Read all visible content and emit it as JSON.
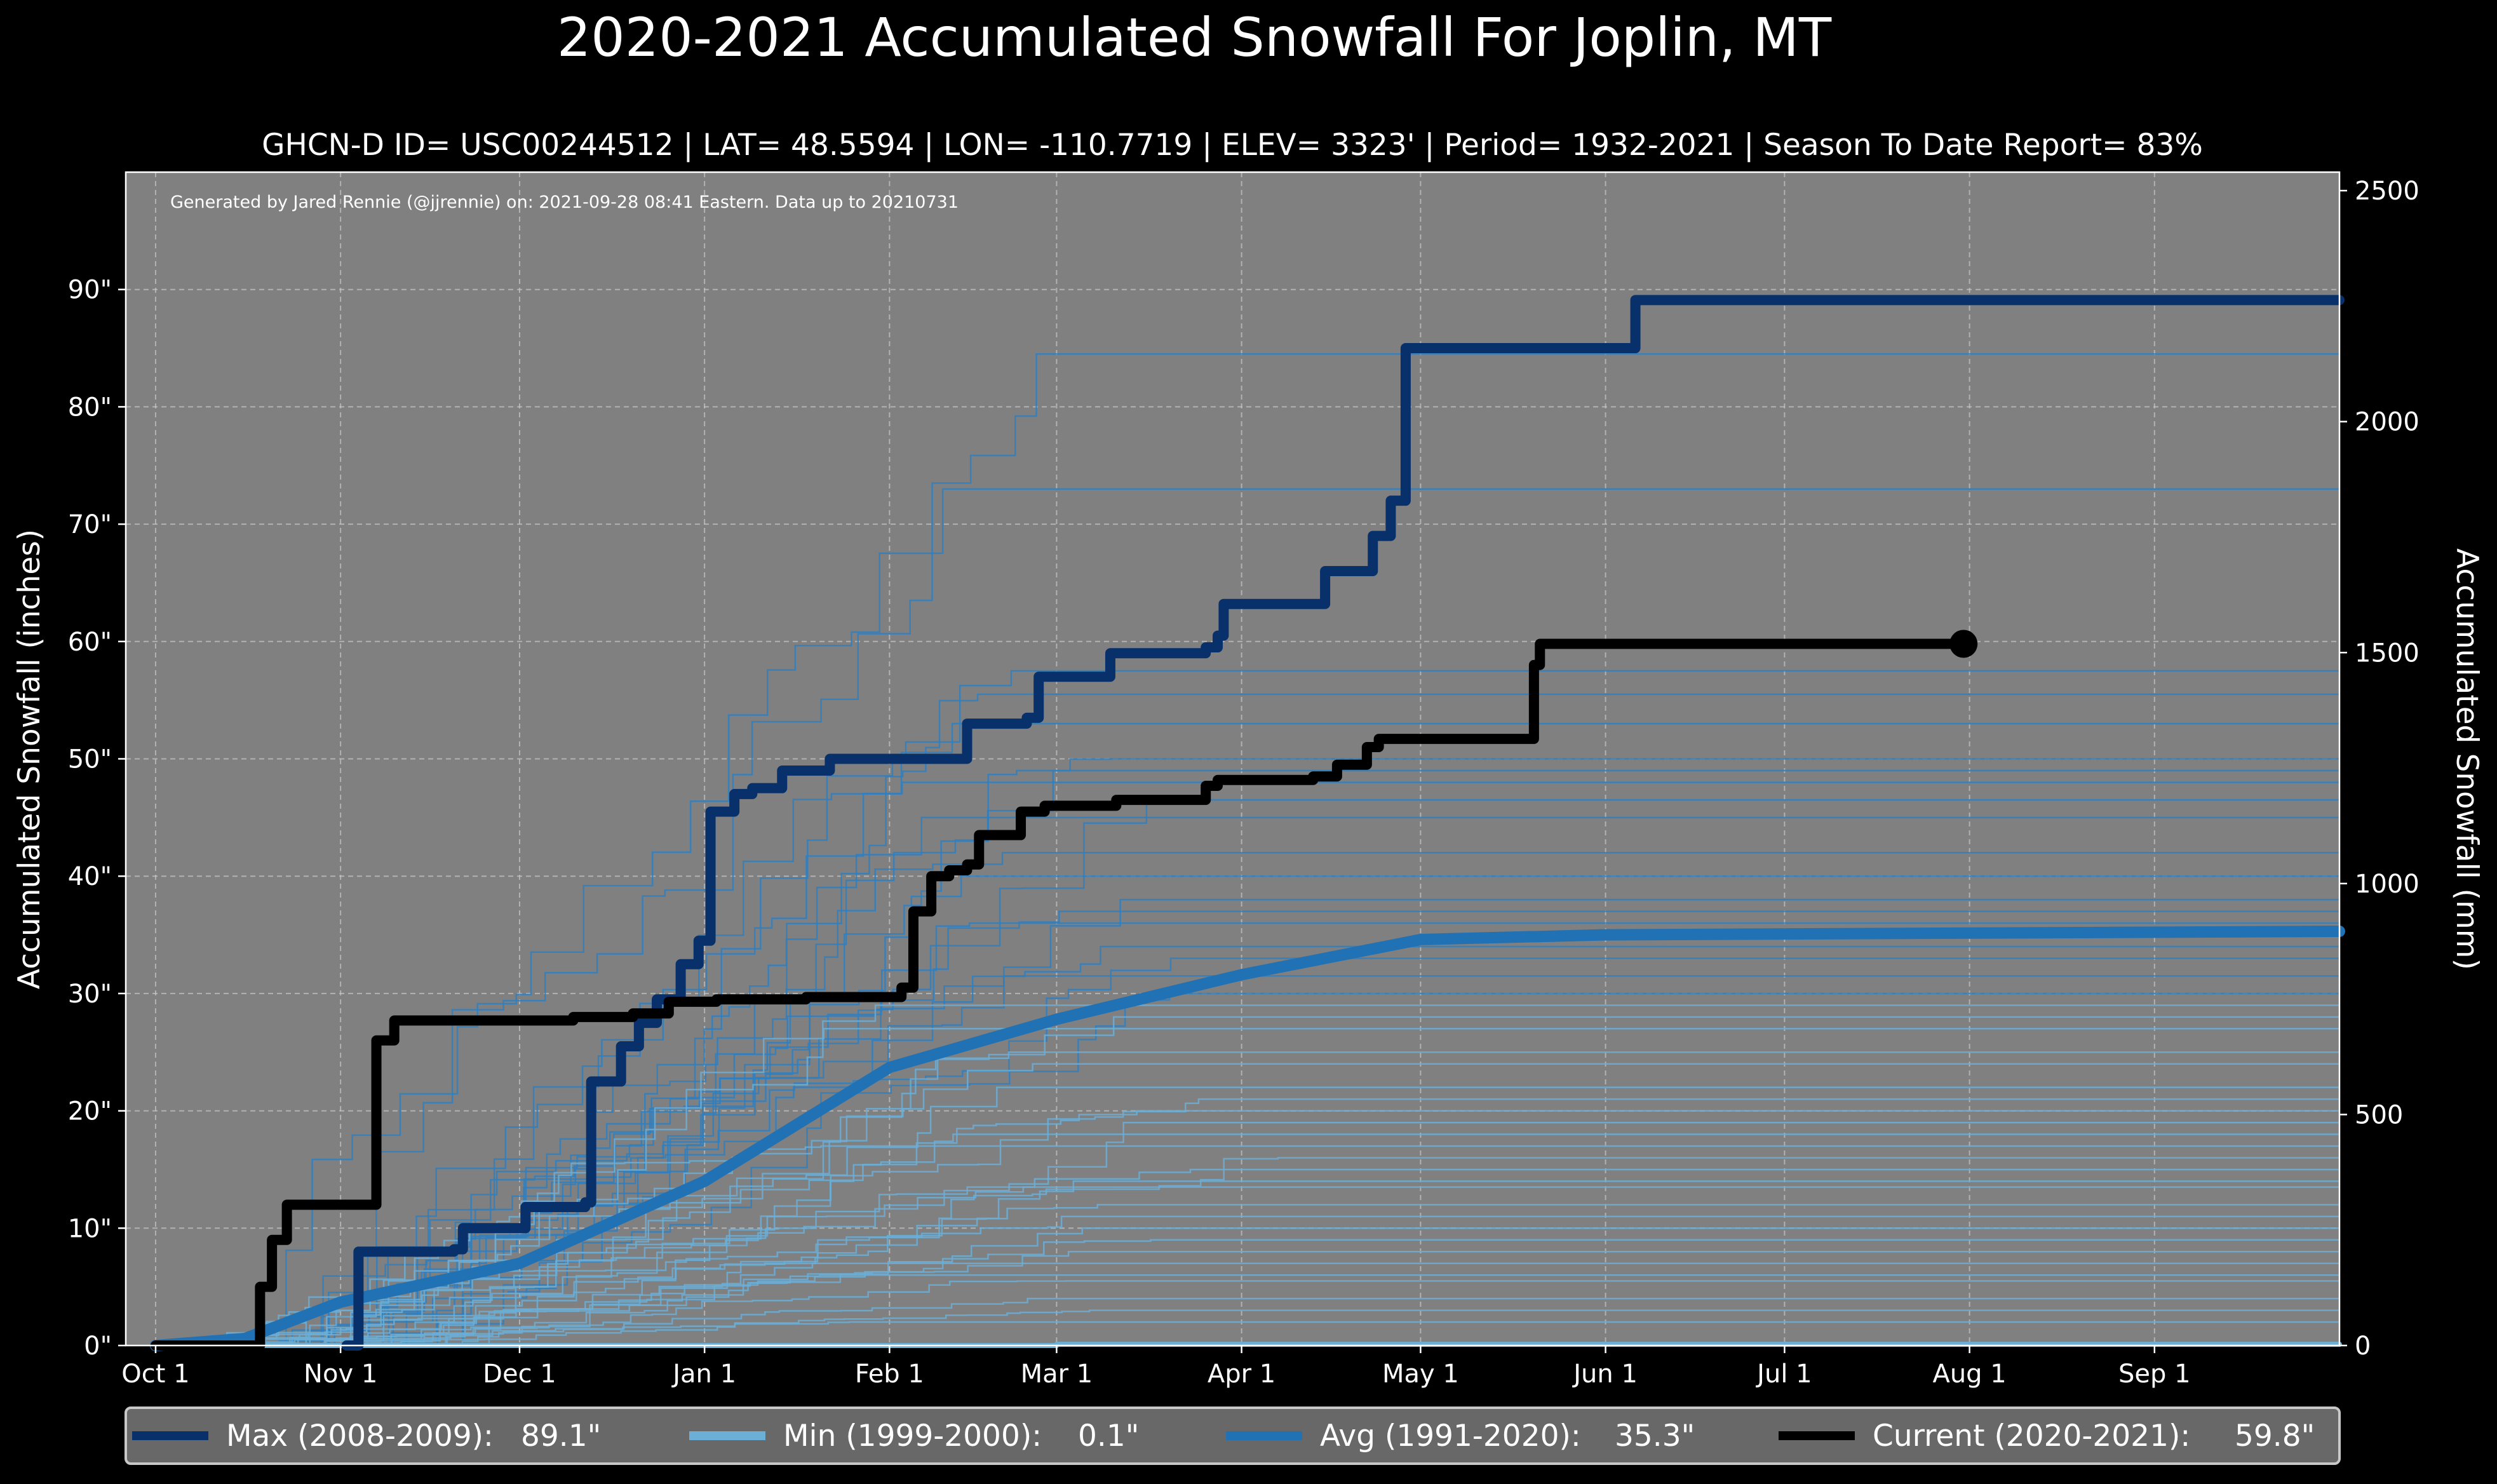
{
  "chart_data": {
    "type": "line",
    "title": "2020-2021 Accumulated Snowfall For Joplin, MT",
    "subtitle": "GHCN-D ID= USC00244512 | LAT= 48.5594 | LON= -110.7719 | ELEV= 3323' | Period= 1932-2021 | Season To Date Report= 83%",
    "annotation": "Generated by Jared Rennie (@jjrennie) on: 2021-09-28 08:41 Eastern. Data up to 20210731",
    "ylabel": "Accumulated Snowfall (inches)",
    "ylabel_right": "Accumulated Snowfall (mm)",
    "xlim_days_since_oct1": [
      -5,
      366
    ],
    "ylim": [
      0,
      100
    ],
    "ylim_right": [
      0,
      2540
    ],
    "grid": true,
    "legend_placement": "bottom",
    "x_ticks": [
      {
        "day": 0,
        "label": "Oct 1"
      },
      {
        "day": 31,
        "label": "Nov 1"
      },
      {
        "day": 61,
        "label": "Dec 1"
      },
      {
        "day": 92,
        "label": "Jan 1"
      },
      {
        "day": 123,
        "label": "Feb 1"
      },
      {
        "day": 151,
        "label": "Mar 1"
      },
      {
        "day": 182,
        "label": "Apr 1"
      },
      {
        "day": 212,
        "label": "May 1"
      },
      {
        "day": 243,
        "label": "Jun 1"
      },
      {
        "day": 273,
        "label": "Jul 1"
      },
      {
        "day": 304,
        "label": "Aug 1"
      },
      {
        "day": 335,
        "label": "Sep 1"
      }
    ],
    "y_ticks": [
      {
        "value": 0,
        "label": "0\""
      },
      {
        "value": 10,
        "label": "10\""
      },
      {
        "value": 20,
        "label": "20\""
      },
      {
        "value": 30,
        "label": "30\""
      },
      {
        "value": 40,
        "label": "40\""
      },
      {
        "value": 50,
        "label": "50\""
      },
      {
        "value": 60,
        "label": "60\""
      },
      {
        "value": 70,
        "label": "70\""
      },
      {
        "value": 80,
        "label": "80\""
      },
      {
        "value": 90,
        "label": "90\""
      }
    ],
    "y_ticks_right": [
      {
        "value": 0,
        "label": "0"
      },
      {
        "value": 500,
        "label": "500"
      },
      {
        "value": 1000,
        "label": "1000"
      },
      {
        "value": 1500,
        "label": "1500"
      },
      {
        "value": 2000,
        "label": "2000"
      },
      {
        "value": 2500,
        "label": "2500"
      }
    ],
    "colors": {
      "background": "#000000",
      "plot": "#808080",
      "max": "#08306b",
      "min": "#6baed6",
      "avg": "#2171b5",
      "current": "#000000",
      "history": "#2f7fc1"
    },
    "series": [
      {
        "key": "max",
        "name": "Max (2008-2009):",
        "value_label": "89.1\"",
        "step": true,
        "points": [
          [
            32,
            0
          ],
          [
            34,
            8
          ],
          [
            50,
            8.2
          ],
          [
            51.5,
            10
          ],
          [
            62,
            11.8
          ],
          [
            72,
            12.2
          ],
          [
            73,
            22.5
          ],
          [
            78,
            25.5
          ],
          [
            81,
            27.5
          ],
          [
            84,
            29.5
          ],
          [
            88,
            32.5
          ],
          [
            91,
            34.5
          ],
          [
            93,
            45.5
          ],
          [
            97,
            47
          ],
          [
            100,
            47.5
          ],
          [
            105,
            49
          ],
          [
            113,
            50
          ],
          [
            134,
            50
          ],
          [
            136,
            53
          ],
          [
            146,
            53.5
          ],
          [
            148,
            57
          ],
          [
            160,
            59
          ],
          [
            176,
            59.5
          ],
          [
            178,
            60.5
          ],
          [
            179,
            63.2
          ],
          [
            196,
            66
          ],
          [
            204,
            69
          ],
          [
            207,
            72
          ],
          [
            209.5,
            85
          ],
          [
            247,
            85
          ],
          [
            248,
            89.1
          ],
          [
            366,
            89.1
          ]
        ]
      },
      {
        "key": "min",
        "name": "Min (1999-2000):",
        "value_label": "0.1\"",
        "step": true,
        "points": [
          [
            0,
            0
          ],
          [
            150,
            0
          ],
          [
            151,
            0.1
          ],
          [
            366,
            0.1
          ]
        ]
      },
      {
        "key": "avg",
        "name": "Avg (1991-2020):",
        "value_label": "35.3\"",
        "step": false,
        "points": [
          [
            0,
            0
          ],
          [
            15,
            0.6
          ],
          [
            31,
            3.7
          ],
          [
            61,
            7
          ],
          [
            92,
            14
          ],
          [
            123,
            23.7
          ],
          [
            151,
            27.8
          ],
          [
            182,
            31.6
          ],
          [
            212,
            34.6
          ],
          [
            243,
            35
          ],
          [
            366,
            35.3
          ]
        ]
      },
      {
        "key": "current",
        "name": "Current (2020-2021):",
        "value_label": "59.8\"",
        "step": true,
        "points": [
          [
            0,
            0
          ],
          [
            15.5,
            0
          ],
          [
            17.5,
            5
          ],
          [
            19.5,
            9
          ],
          [
            22,
            12
          ],
          [
            36,
            12
          ],
          [
            37,
            26
          ],
          [
            40,
            27.7
          ],
          [
            69,
            27.7
          ],
          [
            70,
            28
          ],
          [
            80,
            28.3
          ],
          [
            86,
            29.3
          ],
          [
            94,
            29.5
          ],
          [
            109,
            29.7
          ],
          [
            125,
            30.5
          ],
          [
            127,
            37
          ],
          [
            130,
            40
          ],
          [
            133,
            40.5
          ],
          [
            136,
            41
          ],
          [
            138,
            43.5
          ],
          [
            145,
            45.5
          ],
          [
            149,
            46
          ],
          [
            161,
            46.5
          ],
          [
            176,
            47.7
          ],
          [
            178,
            48.2
          ],
          [
            194,
            48.5
          ],
          [
            198,
            49.5
          ],
          [
            203,
            51
          ],
          [
            205,
            51.7
          ],
          [
            230,
            51.7
          ],
          [
            231,
            58
          ],
          [
            232,
            59.8
          ],
          [
            303,
            59.8
          ]
        ]
      }
    ],
    "history_final_totals": [
      84.5,
      73,
      57.5,
      55.5,
      53,
      50,
      49,
      48,
      46.5,
      45,
      42,
      40,
      38,
      37,
      36,
      34,
      33,
      31.5,
      30,
      29,
      28,
      27,
      25,
      24,
      22,
      21,
      20,
      19,
      18,
      17,
      16,
      15,
      14,
      13.5,
      12,
      11,
      10,
      9,
      8,
      7,
      6,
      5.5,
      4,
      3,
      2
    ]
  }
}
